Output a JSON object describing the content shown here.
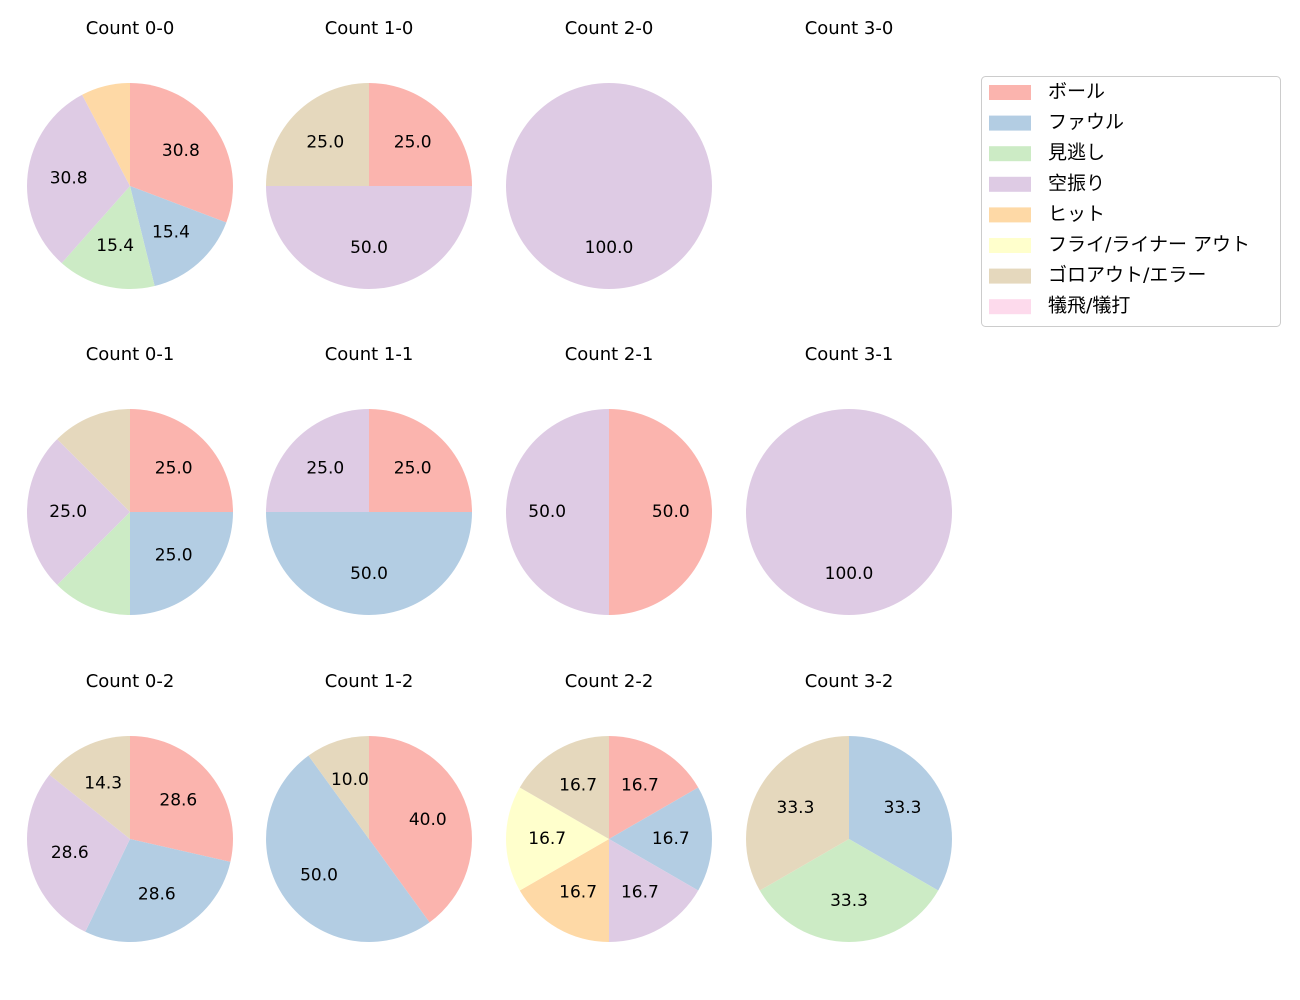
{
  "chart_data": [
    {
      "type": "pie",
      "title": "Count 0-0",
      "values": [
        30.8,
        15.4,
        15.4,
        30.8,
        7.7,
        0,
        0,
        0
      ],
      "value_labels": [
        "30.8",
        "15.4",
        "15.4",
        "30.8",
        null,
        null,
        null,
        null
      ]
    },
    {
      "type": "pie",
      "title": "Count 1-0",
      "values": [
        25,
        0,
        0,
        50,
        0,
        0,
        25,
        0
      ],
      "value_labels": [
        "25.0",
        null,
        null,
        "50.0",
        null,
        null,
        "25.0",
        null
      ]
    },
    {
      "type": "pie",
      "title": "Count 2-0",
      "values": [
        0,
        0,
        0,
        100,
        0,
        0,
        0,
        0
      ],
      "value_labels": [
        null,
        null,
        null,
        "100.0",
        null,
        null,
        null,
        null
      ]
    },
    {
      "type": "pie",
      "title": "Count 3-0",
      "values": [
        0,
        0,
        0,
        0,
        0,
        0,
        0,
        0
      ],
      "value_labels": [
        null,
        null,
        null,
        null,
        null,
        null,
        null,
        null
      ]
    },
    {
      "type": "pie",
      "title": "Count 0-1",
      "values": [
        25,
        25,
        12.5,
        25,
        0,
        0,
        12.5,
        0
      ],
      "value_labels": [
        "25.0",
        "25.0",
        null,
        "25.0",
        null,
        null,
        null,
        null
      ]
    },
    {
      "type": "pie",
      "title": "Count 1-1",
      "values": [
        25,
        50,
        0,
        25,
        0,
        0,
        0,
        0
      ],
      "value_labels": [
        "25.0",
        "50.0",
        null,
        "25.0",
        null,
        null,
        null,
        null
      ]
    },
    {
      "type": "pie",
      "title": "Count 2-1",
      "values": [
        50,
        0,
        0,
        50,
        0,
        0,
        0,
        0
      ],
      "value_labels": [
        "50.0",
        null,
        null,
        "50.0",
        null,
        null,
        null,
        null
      ]
    },
    {
      "type": "pie",
      "title": "Count 3-1",
      "values": [
        0,
        0,
        0,
        100,
        0,
        0,
        0,
        0
      ],
      "value_labels": [
        null,
        null,
        null,
        "100.0",
        null,
        null,
        null,
        null
      ]
    },
    {
      "type": "pie",
      "title": "Count 0-2",
      "values": [
        28.6,
        28.6,
        0,
        28.6,
        0,
        0,
        14.3,
        0
      ],
      "value_labels": [
        "28.6",
        "28.6",
        null,
        "28.6",
        null,
        null,
        "14.3",
        null
      ]
    },
    {
      "type": "pie",
      "title": "Count 1-2",
      "values": [
        40,
        50,
        0,
        0,
        0,
        0,
        10,
        0
      ],
      "value_labels": [
        "40.0",
        "50.0",
        null,
        null,
        null,
        null,
        "10.0",
        null
      ]
    },
    {
      "type": "pie",
      "title": "Count 2-2",
      "values": [
        16.7,
        16.7,
        0,
        16.7,
        16.7,
        16.7,
        16.7,
        0
      ],
      "value_labels": [
        "16.7",
        "16.7",
        null,
        "16.7",
        "16.7",
        "16.7",
        "16.7",
        null
      ]
    },
    {
      "type": "pie",
      "title": "Count 3-2",
      "values": [
        0,
        33.3,
        33.3,
        0,
        0,
        0,
        33.3,
        0
      ],
      "value_labels": [
        null,
        "33.3",
        "33.3",
        null,
        null,
        null,
        "33.3",
        null
      ]
    }
  ],
  "legend": {
    "labels": [
      "ボール",
      "ファウル",
      "見逃し",
      "空振り",
      "ヒット",
      "フライ/ライナー アウト",
      "ゴロアウト/エラー",
      "犠飛/犠打"
    ],
    "colors": [
      "#fbb4ae",
      "#b3cde3",
      "#ccebc5",
      "#decbe4",
      "#fed9a6",
      "#ffffcc",
      "#e5d8bd",
      "#fddaec"
    ]
  }
}
